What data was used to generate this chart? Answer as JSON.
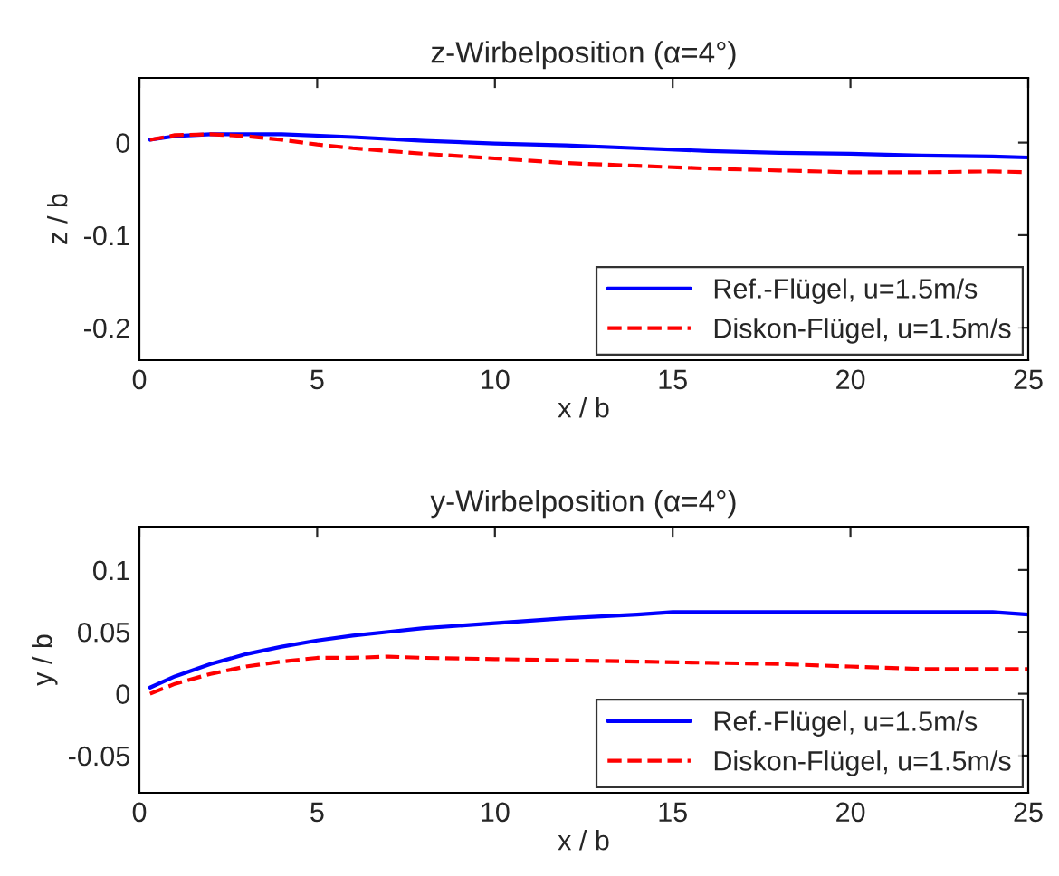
{
  "chart_data": [
    {
      "type": "line",
      "title": "z-Wirbelposition (α=4°)",
      "xlabel": "x / b",
      "ylabel": "z / b",
      "xlim": [
        0,
        25
      ],
      "xticks": [
        0,
        5,
        10,
        15,
        20,
        25
      ],
      "ylim": [
        -0.235,
        0.07
      ],
      "yticks": [
        -0.2,
        -0.1,
        0
      ],
      "legend": "bottom right",
      "grid": false,
      "series": [
        {
          "name": "Ref.-Flügel, u=1.5m/s",
          "color": "#0000ff",
          "line_style": "solid",
          "x": [
            0.3,
            1,
            2,
            4,
            6,
            8,
            10,
            12,
            14,
            16,
            18,
            20,
            22,
            24,
            25
          ],
          "values": [
            0.003,
            0.007,
            0.009,
            0.009,
            0.006,
            0.002,
            -0.001,
            -0.003,
            -0.006,
            -0.009,
            -0.011,
            -0.012,
            -0.014,
            -0.015,
            -0.016
          ]
        },
        {
          "name": "Diskon-Flügel, u=1.5m/s",
          "color": "#ff0000",
          "line_style": "dashed",
          "x": [
            0.3,
            1,
            2,
            3,
            4,
            5,
            6,
            8,
            10,
            12,
            14,
            16,
            18,
            20,
            22,
            24,
            25
          ],
          "values": [
            0.003,
            0.008,
            0.009,
            0.007,
            0.003,
            -0.002,
            -0.006,
            -0.012,
            -0.017,
            -0.022,
            -0.025,
            -0.028,
            -0.03,
            -0.032,
            -0.032,
            -0.031,
            -0.032
          ]
        }
      ]
    },
    {
      "type": "line",
      "title": "y-Wirbelposition (α=4°)",
      "xlabel": "x / b",
      "ylabel": "y / b",
      "xlim": [
        0,
        25
      ],
      "xticks": [
        0,
        5,
        10,
        15,
        20,
        25
      ],
      "ylim": [
        -0.08,
        0.135
      ],
      "yticks": [
        -0.05,
        0,
        0.05,
        0.1
      ],
      "legend": "bottom right",
      "grid": false,
      "series": [
        {
          "name": "Ref.-Flügel, u=1.5m/s",
          "color": "#0000ff",
          "line_style": "solid",
          "x": [
            0.3,
            1,
            2,
            3,
            4,
            5,
            6,
            7,
            8,
            10,
            12,
            14,
            15,
            20,
            24,
            25
          ],
          "values": [
            0.005,
            0.014,
            0.024,
            0.032,
            0.038,
            0.043,
            0.047,
            0.05,
            0.053,
            0.057,
            0.061,
            0.064,
            0.066,
            0.066,
            0.066,
            0.064
          ]
        },
        {
          "name": "Diskon-Flügel, u=1.5m/s",
          "color": "#ff0000",
          "line_style": "dashed",
          "x": [
            0.3,
            1,
            2,
            3,
            4,
            5,
            6,
            7,
            8,
            10,
            12,
            14,
            16,
            18,
            20,
            22,
            25
          ],
          "values": [
            0,
            0.008,
            0.016,
            0.022,
            0.026,
            0.029,
            0.029,
            0.03,
            0.029,
            0.028,
            0.027,
            0.026,
            0.025,
            0.024,
            0.022,
            0.02,
            0.02
          ]
        }
      ]
    }
  ]
}
